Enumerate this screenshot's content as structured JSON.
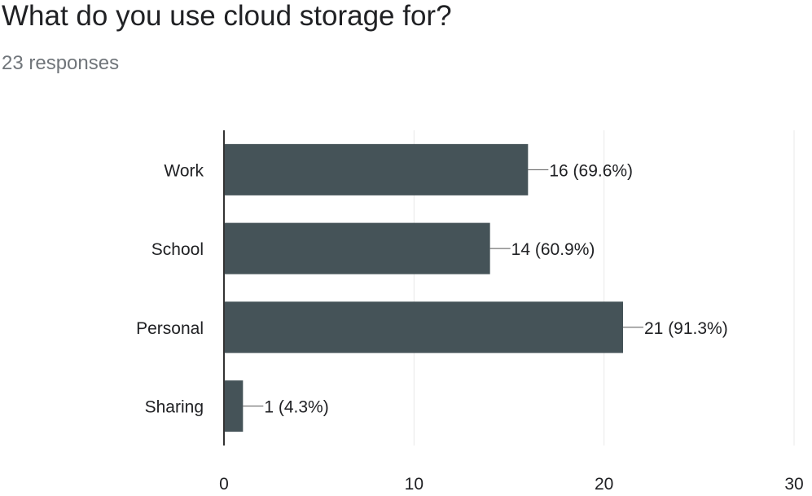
{
  "question": {
    "title": "What do you use cloud storage for?",
    "responses": "23 responses"
  },
  "colors": {
    "bar": "#455358",
    "axis": "#333333",
    "grid": "#e8e8e8",
    "text": "#202124"
  },
  "chart_data": {
    "type": "bar",
    "orientation": "horizontal",
    "categories": [
      "Work",
      "School",
      "Personal",
      "Sharing"
    ],
    "values": [
      16,
      14,
      21,
      1
    ],
    "data_labels": [
      "16 (69.6%)",
      "14 (60.9%)",
      "21 (91.3%)",
      "1 (4.3%)"
    ],
    "xlim": [
      0,
      30
    ],
    "xticks": [
      0,
      10,
      20,
      30
    ],
    "grid": true,
    "legend": "none"
  }
}
